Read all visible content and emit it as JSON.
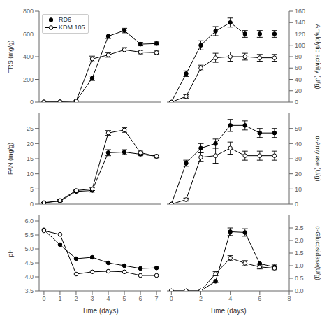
{
  "chart_data": [
    {
      "type": "line",
      "ylabel": "TRS (mg/g)",
      "xlim": [
        -0.3,
        7.3
      ],
      "xticks": [
        0,
        1,
        2,
        3,
        4,
        5,
        6,
        7
      ],
      "ylim": [
        0,
        800
      ],
      "yticks": [
        0,
        200,
        400,
        600,
        800
      ],
      "tick_labels": "y",
      "grid": false,
      "legend": "upper left",
      "x": [
        0,
        1,
        2,
        3,
        4,
        5,
        6,
        7
      ],
      "series": [
        {
          "name": "RD6",
          "color": "#000000",
          "marker": "circle_filled",
          "values": [
            2,
            3,
            10,
            210,
            580,
            630,
            510,
            515
          ],
          "errors": [
            0,
            0,
            2,
            20,
            20,
            20,
            15,
            15
          ]
        },
        {
          "name": "KDM 105",
          "color": "#000000",
          "marker": "circle_open",
          "values": [
            1,
            2,
            8,
            380,
            415,
            460,
            440,
            435
          ],
          "errors": [
            0,
            0,
            2,
            25,
            20,
            20,
            15,
            15
          ]
        }
      ]
    },
    {
      "type": "line",
      "ylabel": "Amylolytic activity (U/g)",
      "xlim": [
        -0.3,
        8
      ],
      "xticks": [
        0,
        2,
        4,
        6,
        8
      ],
      "ylim": [
        0,
        160
      ],
      "yticks": [
        0,
        20,
        40,
        60,
        80,
        100,
        120,
        140,
        160
      ],
      "tick_labels": "y",
      "grid": false,
      "x": [
        0,
        1,
        2,
        3,
        4,
        5,
        6,
        7
      ],
      "series": [
        {
          "color": "#000000",
          "marker": "circle_filled",
          "values": [
            0,
            50,
            100,
            125,
            140,
            120,
            120,
            120
          ],
          "errors": [
            0,
            5,
            8,
            8,
            8,
            6,
            6,
            6
          ]
        },
        {
          "color": "#000000",
          "marker": "circle_open",
          "values": [
            0,
            10,
            60,
            78,
            80,
            80,
            78,
            78
          ],
          "errors": [
            0,
            3,
            5,
            8,
            8,
            6,
            6,
            6
          ]
        }
      ]
    },
    {
      "type": "line",
      "ylabel": "FAN (mg/g)",
      "xlim": [
        -0.3,
        7.3
      ],
      "xticks": [
        0,
        1,
        2,
        3,
        4,
        5,
        6,
        7
      ],
      "ylim": [
        0,
        30
      ],
      "yticks": [
        0,
        5,
        10,
        15,
        20,
        25
      ],
      "tick_labels": "y",
      "grid": false,
      "x": [
        0,
        1,
        2,
        3,
        4,
        5,
        6,
        7
      ],
      "series": [
        {
          "color": "#000000",
          "marker": "circle_filled",
          "values": [
            0.5,
            1.0,
            4.2,
            4.5,
            17.0,
            17.2,
            16.5,
            15.8
          ],
          "errors": [
            0.1,
            0.2,
            0.3,
            0.5,
            1.0,
            0.8,
            0.5,
            0.5
          ]
        },
        {
          "color": "#000000",
          "marker": "circle_open",
          "values": [
            0.4,
            1.2,
            4.5,
            5.0,
            23.5,
            24.5,
            17.0,
            15.8
          ],
          "errors": [
            0.1,
            0.3,
            0.3,
            0.5,
            0.8,
            0.8,
            0.5,
            0.5
          ]
        }
      ]
    },
    {
      "type": "line",
      "ylabel": "α-Amylase (U/g)",
      "xlim": [
        -0.3,
        8
      ],
      "xticks": [
        0,
        2,
        4,
        6,
        8
      ],
      "ylim": [
        0,
        60
      ],
      "yticks": [
        0,
        10,
        20,
        30,
        40,
        50
      ],
      "tick_labels": "y",
      "grid": false,
      "x": [
        0,
        1,
        2,
        3,
        4,
        5,
        6,
        7
      ],
      "series": [
        {
          "color": "#000000",
          "marker": "circle_filled",
          "values": [
            0,
            27,
            37,
            40,
            52,
            52,
            47,
            47
          ],
          "errors": [
            0,
            2,
            3,
            3,
            4,
            3,
            3,
            3
          ]
        },
        {
          "color": "#000000",
          "marker": "circle_open",
          "values": [
            0,
            3,
            31,
            32,
            37,
            32,
            32,
            32
          ],
          "errors": [
            0,
            1,
            3,
            5,
            4,
            3,
            3,
            3
          ]
        }
      ]
    },
    {
      "type": "line",
      "ylabel": "pH",
      "xlabel": "Time (days)",
      "xlim": [
        -0.3,
        7.3
      ],
      "xticks": [
        0,
        1,
        2,
        3,
        4,
        5,
        6,
        7
      ],
      "ylim": [
        3.5,
        6.2
      ],
      "yticks": [
        3.5,
        {
          "value": 4.0,
          "label": "4.0"
        },
        4.5,
        {
          "value": 5.0,
          "label": "5.0"
        },
        5.5,
        {
          "value": 6.0,
          "label": "6.0"
        }
      ],
      "grid": false,
      "x": [
        0,
        1,
        2,
        3,
        4,
        5,
        6,
        7
      ],
      "series": [
        {
          "color": "#000000",
          "marker": "circle_filled",
          "values": [
            5.68,
            5.15,
            4.65,
            4.7,
            4.5,
            4.4,
            4.3,
            4.32
          ]
        },
        {
          "color": "#000000",
          "marker": "circle_open",
          "values": [
            5.65,
            5.52,
            4.1,
            4.18,
            4.2,
            4.18,
            4.05,
            4.05
          ]
        }
      ]
    },
    {
      "type": "line",
      "ylabel": "α-Glucosidase(U/g)",
      "xlabel": "Time (days)",
      "xlim": [
        -0.3,
        8
      ],
      "xticks": [
        0,
        2,
        4,
        6,
        8
      ],
      "ylim": [
        0.0,
        3.0
      ],
      "yticks": [
        {
          "value": 0.0,
          "label": "0.0"
        },
        0.5,
        {
          "value": 1.0,
          "label": "1.0"
        },
        1.5,
        {
          "value": 2.0,
          "label": "2.0"
        },
        2.5
      ],
      "grid": false,
      "x": [
        0,
        1,
        2,
        3,
        4,
        5,
        6,
        7
      ],
      "series": [
        {
          "color": "#000000",
          "marker": "circle_filled",
          "values": [
            0,
            0,
            0.0,
            0.38,
            2.35,
            2.32,
            1.08,
            0.95
          ],
          "errors": [
            0,
            0,
            0,
            0.05,
            0.15,
            0.15,
            0.1,
            0.08
          ]
        },
        {
          "color": "#000000",
          "marker": "circle_open",
          "values": [
            0,
            0,
            0.0,
            0.68,
            1.3,
            1.1,
            0.95,
            0.9
          ],
          "errors": [
            0,
            0,
            0,
            0.08,
            0.1,
            0.1,
            0.08,
            0.06
          ]
        }
      ]
    }
  ]
}
